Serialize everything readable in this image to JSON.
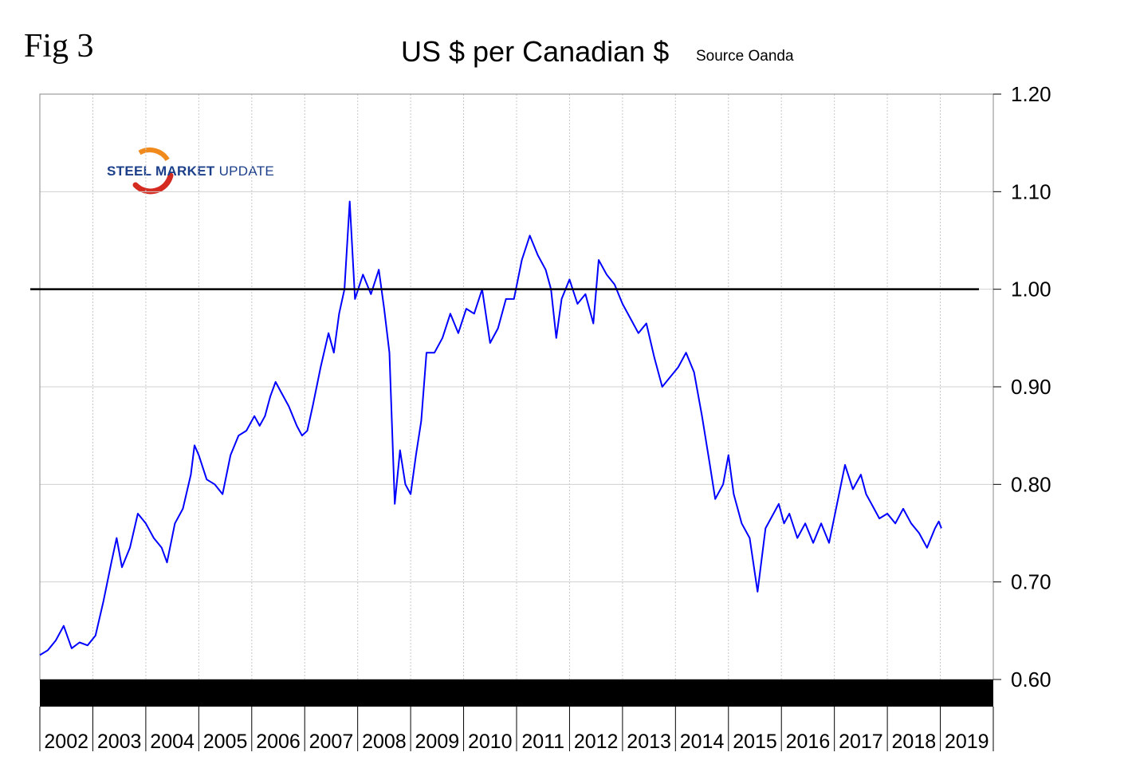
{
  "figure_label": "Fig 3",
  "logo": {
    "part1": "STEEL",
    "part2": "MARKET",
    "part3": "UPDATE",
    "colors": {
      "text": "#1c3f8a",
      "swoosh_red": "#d42a1f",
      "swoosh_orange": "#f08a1c"
    }
  },
  "chart_data": {
    "type": "line",
    "title": "US $ per Canadian $",
    "subtitle": "Source Oanda",
    "xlabel": "",
    "ylabel": "",
    "ylim": [
      0.6,
      1.2
    ],
    "y_ticks": [
      "1.20",
      "1.10",
      "1.00",
      "0.90",
      "0.80",
      "0.70",
      "0.60"
    ],
    "x_ticks": [
      "2002",
      "2003",
      "2004",
      "2005",
      "2006",
      "2007",
      "2008",
      "2009",
      "2010",
      "2011",
      "2012",
      "2013",
      "2014",
      "2015",
      "2016",
      "2017",
      "2018",
      "2019"
    ],
    "reference_line": 1.0,
    "grid": true,
    "series_color": "#0000ff",
    "series": [
      {
        "x": [
          2002.0,
          2002.15,
          2002.3,
          2002.45,
          2002.6,
          2002.75,
          2002.9,
          2003.05,
          2003.2,
          2003.35,
          2003.45,
          2003.55,
          2003.7,
          2003.85,
          2004.0,
          2004.15,
          2004.3,
          2004.4,
          2004.55,
          2004.7,
          2004.85,
          2004.92,
          2005.0,
          2005.15,
          2005.3,
          2005.45,
          2005.6,
          2005.75,
          2005.9,
          2006.05,
          2006.15,
          2006.25,
          2006.35,
          2006.45,
          2006.55,
          2006.7,
          2006.85,
          2006.95,
          2007.05,
          2007.15,
          2007.3,
          2007.45,
          2007.55,
          2007.65,
          2007.75,
          2007.85,
          2007.95,
          2008.1,
          2008.25,
          2008.4,
          2008.5,
          2008.6,
          2008.7,
          2008.8,
          2008.9,
          2009.0,
          2009.1,
          2009.2,
          2009.3,
          2009.45,
          2009.6,
          2009.75,
          2009.9,
          2010.05,
          2010.2,
          2010.35,
          2010.5,
          2010.65,
          2010.8,
          2010.95,
          2011.1,
          2011.25,
          2011.4,
          2011.55,
          2011.65,
          2011.75,
          2011.85,
          2012.0,
          2012.15,
          2012.3,
          2012.45,
          2012.55,
          2012.7,
          2012.85,
          2013.0,
          2013.15,
          2013.3,
          2013.45,
          2013.6,
          2013.75,
          2013.9,
          2014.05,
          2014.2,
          2014.35,
          2014.5,
          2014.65,
          2014.75,
          2014.9,
          2015.0,
          2015.1,
          2015.25,
          2015.4,
          2015.55,
          2015.7,
          2015.85,
          2015.95,
          2016.05,
          2016.15,
          2016.3,
          2016.45,
          2016.6,
          2016.75,
          2016.9,
          2017.05,
          2017.2,
          2017.35,
          2017.5,
          2017.6,
          2017.7,
          2017.85,
          2018.0,
          2018.15,
          2018.3,
          2018.45,
          2018.6,
          2018.75,
          2018.9,
          2018.97,
          2019.02
        ],
        "values": [
          0.625,
          0.63,
          0.64,
          0.655,
          0.632,
          0.638,
          0.635,
          0.645,
          0.68,
          0.72,
          0.745,
          0.715,
          0.735,
          0.77,
          0.76,
          0.745,
          0.735,
          0.72,
          0.76,
          0.775,
          0.81,
          0.84,
          0.83,
          0.805,
          0.8,
          0.79,
          0.83,
          0.85,
          0.855,
          0.87,
          0.86,
          0.87,
          0.89,
          0.905,
          0.895,
          0.88,
          0.86,
          0.85,
          0.855,
          0.88,
          0.92,
          0.955,
          0.935,
          0.975,
          1.0,
          1.09,
          0.99,
          1.015,
          0.995,
          1.02,
          0.98,
          0.935,
          0.78,
          0.835,
          0.8,
          0.79,
          0.83,
          0.865,
          0.935,
          0.935,
          0.95,
          0.975,
          0.955,
          0.98,
          0.975,
          1.0,
          0.945,
          0.96,
          0.99,
          0.99,
          1.03,
          1.055,
          1.035,
          1.02,
          1.0,
          0.95,
          0.99,
          1.01,
          0.985,
          0.995,
          0.965,
          1.03,
          1.015,
          1.005,
          0.985,
          0.97,
          0.955,
          0.965,
          0.93,
          0.9,
          0.91,
          0.92,
          0.935,
          0.915,
          0.87,
          0.82,
          0.785,
          0.8,
          0.83,
          0.79,
          0.76,
          0.745,
          0.69,
          0.755,
          0.77,
          0.78,
          0.76,
          0.77,
          0.745,
          0.76,
          0.74,
          0.76,
          0.74,
          0.78,
          0.82,
          0.795,
          0.81,
          0.79,
          0.78,
          0.765,
          0.77,
          0.76,
          0.775,
          0.76,
          0.75,
          0.735,
          0.755,
          0.762,
          0.755
        ]
      }
    ]
  }
}
